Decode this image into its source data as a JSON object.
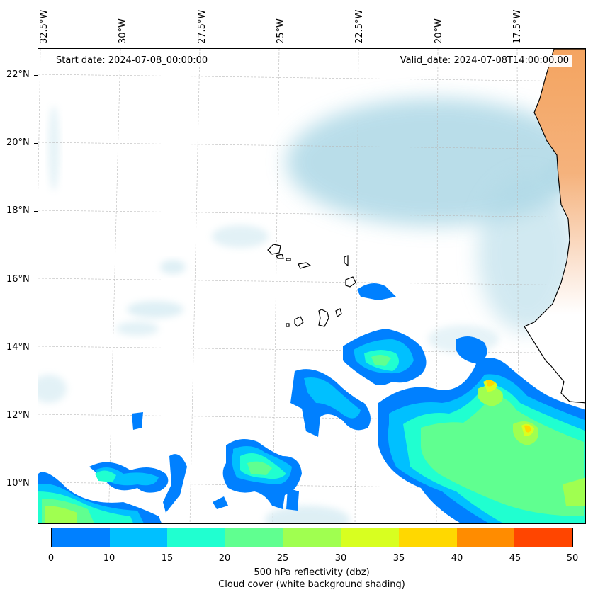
{
  "map": {
    "start_date": "Start date: 2024-07-08_00:00:00",
    "valid_date": "Valid_date: 2024-07-08T14:00:00.00",
    "lon_labels": [
      "32.5°W",
      "30°W",
      "27.5°W",
      "25°W",
      "22.5°W",
      "20°W",
      "17.5°W"
    ],
    "lat_labels": [
      "22°N",
      "20°N",
      "18°N",
      "16°N",
      "14°N",
      "12°N",
      "10°N"
    ],
    "land_color": "#f4a460",
    "coastline_color": "#000000",
    "cloud_color": "#add8e6"
  },
  "colorbar": {
    "ticks": [
      "0",
      "10",
      "15",
      "20",
      "25",
      "30",
      "35",
      "40",
      "45",
      "50"
    ],
    "colors": [
      "#0080ff",
      "#00c0ff",
      "#20ffd0",
      "#60ff90",
      "#a0ff50",
      "#d8ff20",
      "#ffd800",
      "#ff8c00",
      "#ff4500"
    ],
    "label_line1": "500 hPa reflectivity (dbz)",
    "label_line2": "Cloud cover (white background shading)"
  }
}
